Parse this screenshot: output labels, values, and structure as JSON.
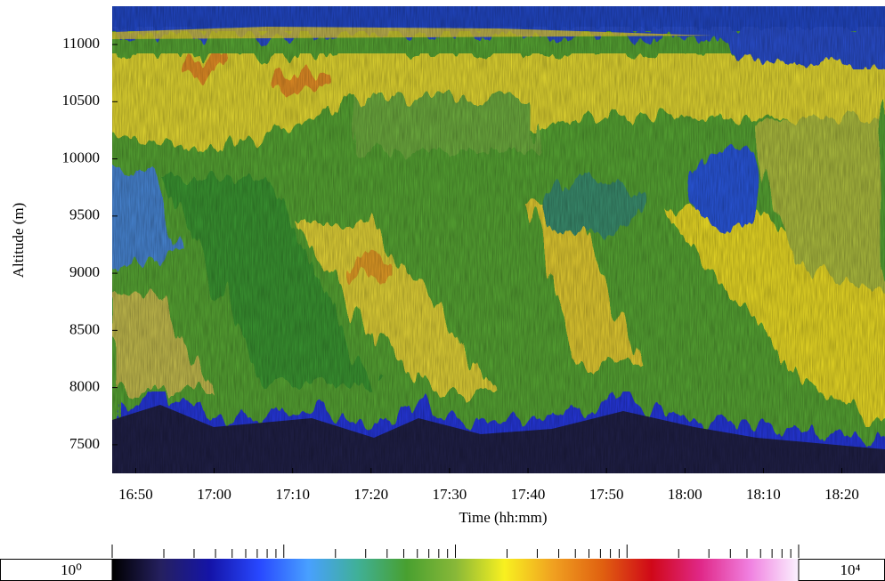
{
  "chart_data": {
    "type": "heatmap",
    "xlabel": "Time (hh:mm)",
    "ylabel": "Altitude (m)",
    "xlim": [
      1007,
      1105.5
    ],
    "xticks": [
      {
        "value": 1010,
        "label": "16:50"
      },
      {
        "value": 1020,
        "label": "17:00"
      },
      {
        "value": 1030,
        "label": "17:10"
      },
      {
        "value": 1040,
        "label": "17:20"
      },
      {
        "value": 1050,
        "label": "17:30"
      },
      {
        "value": 1060,
        "label": "17:40"
      },
      {
        "value": 1070,
        "label": "17:50"
      },
      {
        "value": 1080,
        "label": "18:00"
      },
      {
        "value": 1090,
        "label": "18:10"
      },
      {
        "value": 1100,
        "label": "18:20"
      }
    ],
    "ylim": [
      7250,
      11335
    ],
    "yticks": [
      7500,
      8000,
      8500,
      9000,
      9500,
      10000,
      10500,
      11000
    ],
    "colorbar": {
      "log": true,
      "lim": [
        1,
        10000
      ],
      "labels": [
        {
          "value": 1,
          "label": "10⁰"
        },
        {
          "value": 10000,
          "label": "10⁴"
        }
      ],
      "ticks": [
        1,
        2,
        3,
        4,
        5,
        6,
        7,
        8,
        9,
        10,
        20,
        30,
        40,
        50,
        60,
        70,
        80,
        90,
        100,
        200,
        300,
        400,
        500,
        600,
        700,
        800,
        900,
        1000,
        2000,
        3000,
        4000,
        5000,
        6000,
        7000,
        8000,
        9000,
        10000
      ],
      "colors": [
        "#000000",
        "#252060",
        "#1414a8",
        "#2848ff",
        "#48a0ff",
        "#40b098",
        "#48a030",
        "#88b838",
        "#f8f020",
        "#f0a020",
        "#e06010",
        "#d00818",
        "#e02888",
        "#f080e0",
        "#fbf2ff"
      ]
    }
  }
}
